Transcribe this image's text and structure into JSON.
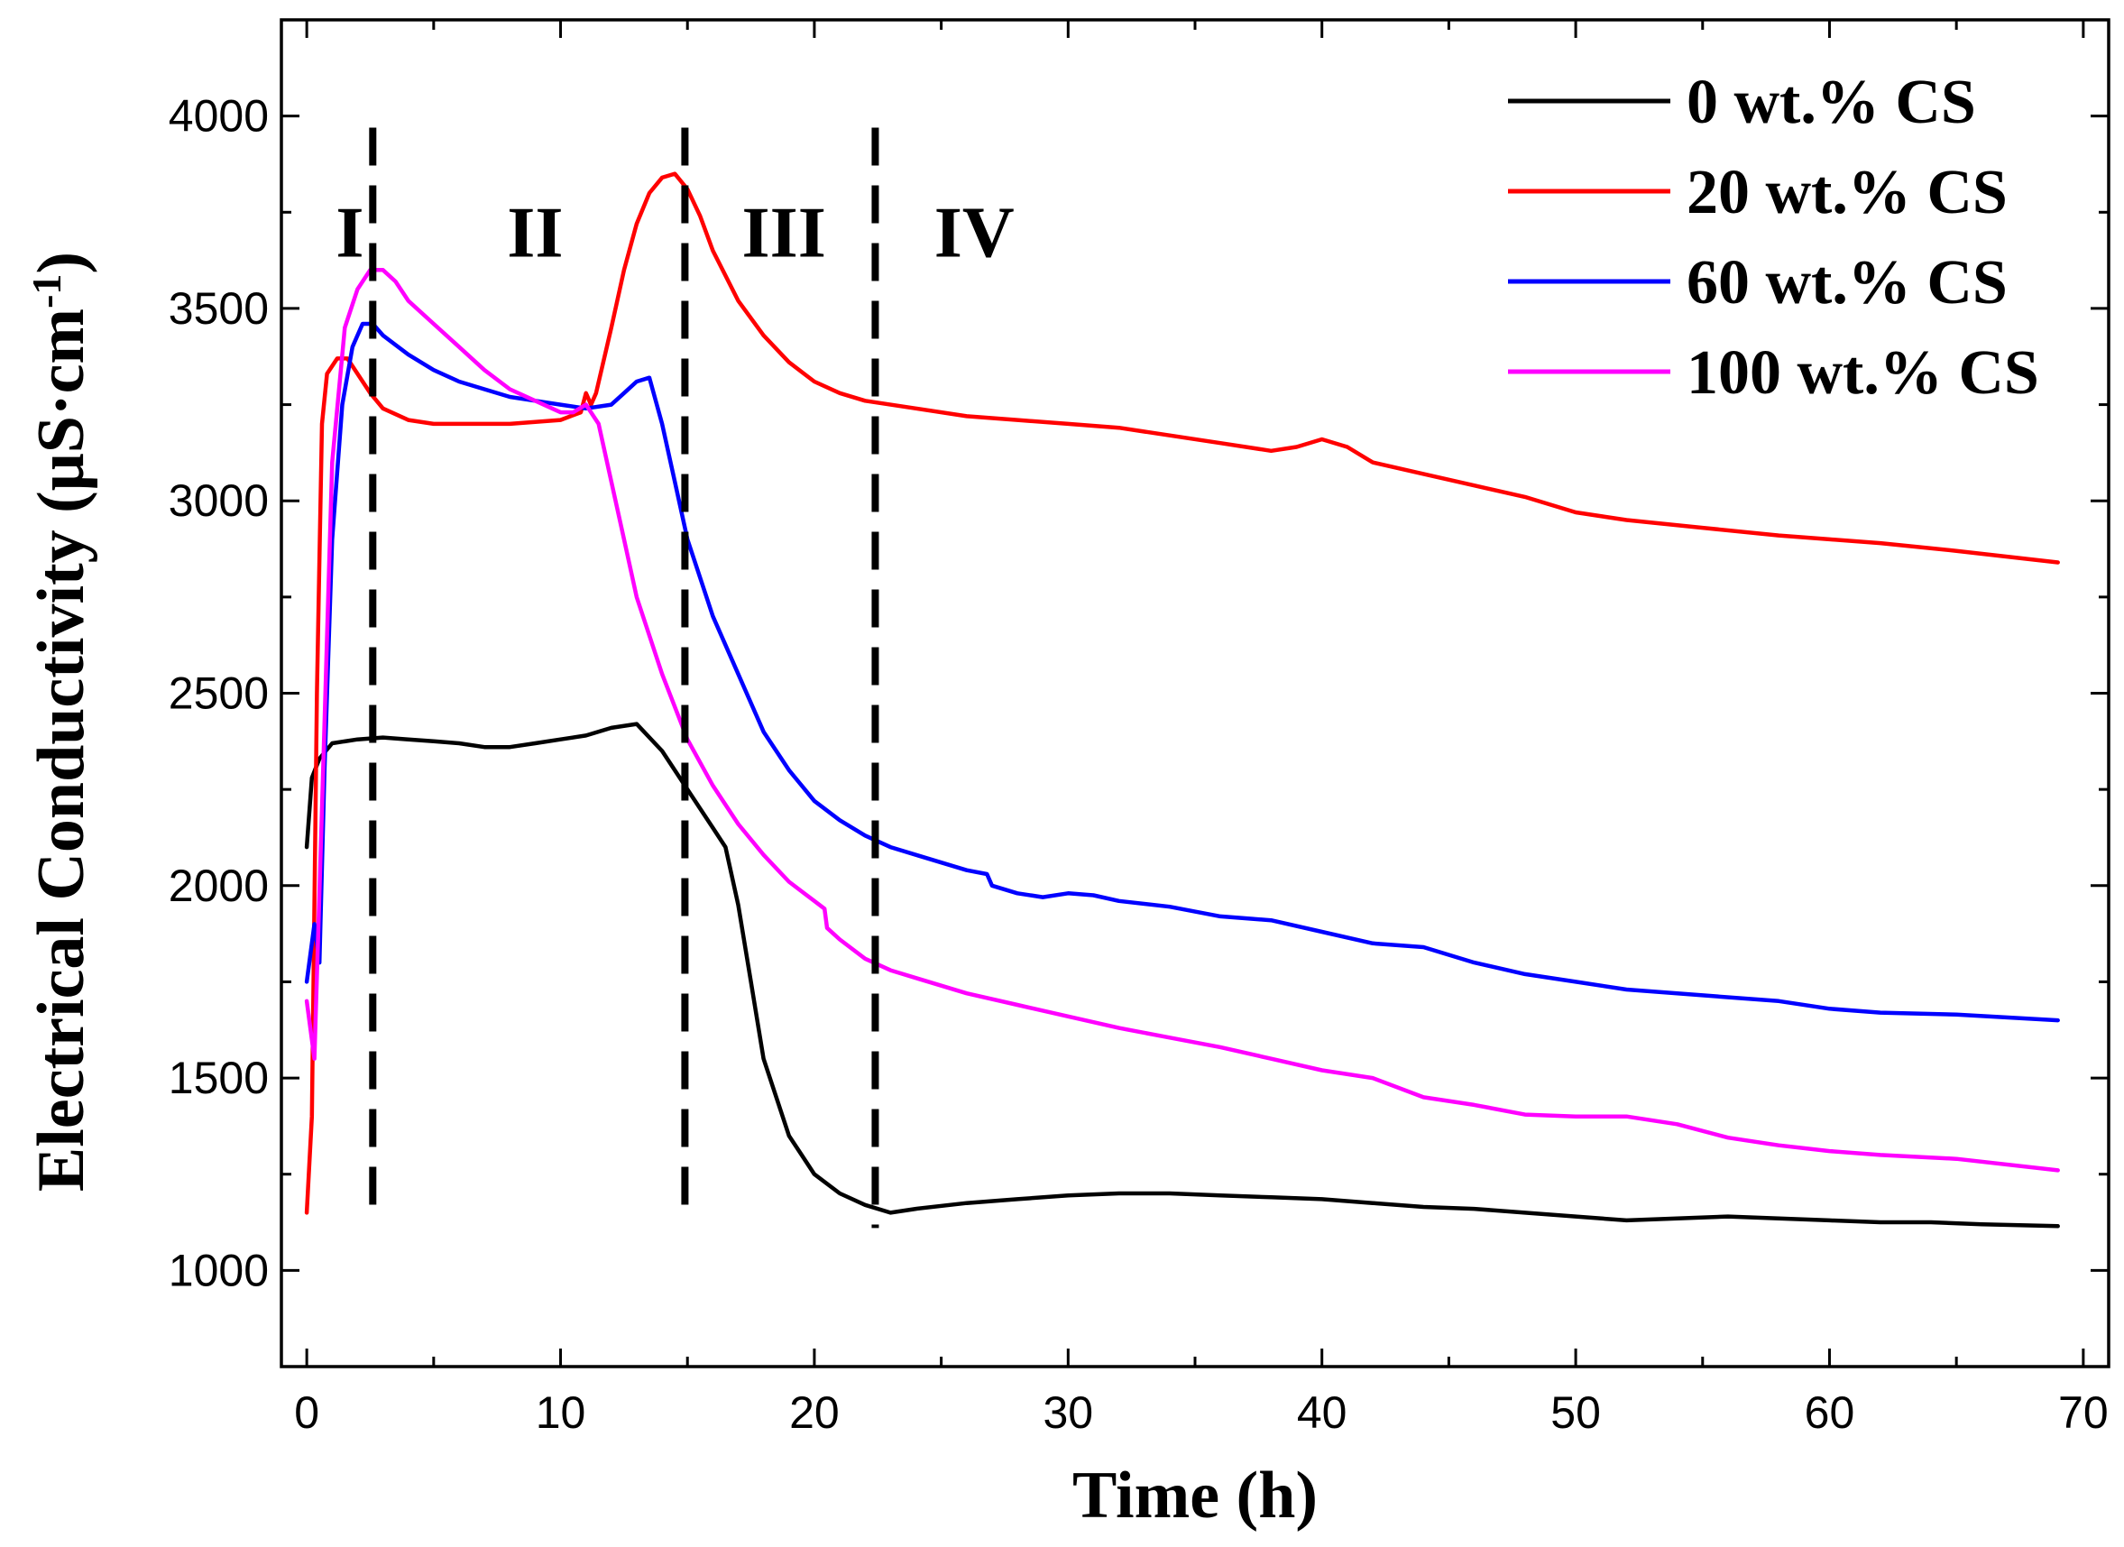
{
  "chart_data": {
    "type": "line",
    "title": "",
    "xlabel": "Time (h)",
    "ylabel": "Electrical Conductivity (μS·cm",
    "ylabel_superscript": "-1",
    "ylabel_close": ")",
    "xlim": [
      -1,
      71
    ],
    "ylim": [
      750,
      4250
    ],
    "x_ticks": [
      0,
      10,
      20,
      30,
      40,
      50,
      60,
      70
    ],
    "x_tick_labels": [
      "0",
      "10",
      "20",
      "30",
      "40",
      "50",
      "60",
      "70"
    ],
    "y_ticks": [
      1000,
      1500,
      2000,
      2500,
      3000,
      3500,
      4000
    ],
    "y_tick_labels": [
      "1000",
      "1500",
      "2000",
      "2500",
      "3000",
      "3500",
      "4000"
    ],
    "legend_position": "top-right",
    "regions": [
      {
        "label": "I",
        "x": 1.7
      },
      {
        "label": "II",
        "x": 9.0
      },
      {
        "label": "III",
        "x": 18.8
      },
      {
        "label": "IV",
        "x": 26.3
      }
    ],
    "region_label_y": 3700,
    "dividers": [
      {
        "x": 2.6,
        "y_top": 3970,
        "y_bottom": 1160
      },
      {
        "x": 14.9,
        "y_top": 3970,
        "y_bottom": 1160
      },
      {
        "x": 22.4,
        "y_top": 3970,
        "y_bottom": 1110
      }
    ],
    "series": [
      {
        "name": "0 wt.% CS",
        "color": "#000000",
        "x": [
          0,
          0.2,
          0.5,
          1,
          2,
          3,
          4,
          5,
          6,
          7,
          8,
          9,
          10,
          11,
          12,
          13,
          14,
          15,
          16,
          16.5,
          17,
          17.5,
          18,
          19,
          20,
          21,
          22,
          23,
          24,
          26,
          28,
          30,
          32,
          34,
          36,
          38,
          40,
          42,
          44,
          46,
          48,
          50,
          52,
          54,
          56,
          58,
          60,
          62,
          64,
          66,
          69
        ],
        "y": [
          2100,
          2280,
          2330,
          2370,
          2380,
          2385,
          2380,
          2375,
          2370,
          2360,
          2360,
          2370,
          2380,
          2390,
          2410,
          2420,
          2350,
          2250,
          2150,
          2100,
          1950,
          1750,
          1550,
          1350,
          1250,
          1200,
          1170,
          1150,
          1160,
          1175,
          1185,
          1195,
          1200,
          1200,
          1195,
          1190,
          1185,
          1175,
          1165,
          1160,
          1150,
          1140,
          1130,
          1135,
          1140,
          1135,
          1130,
          1125,
          1125,
          1120,
          1115
        ]
      },
      {
        "name": "20 wt.% CS",
        "color": "#ff0000",
        "x": [
          0,
          0.2,
          0.4,
          0.6,
          0.8,
          1.2,
          1.6,
          2,
          2.5,
          3,
          4,
          5,
          6,
          8,
          10,
          10.8,
          11,
          11.2,
          11.4,
          12,
          12.5,
          13,
          13.5,
          14,
          14.5,
          15,
          15.5,
          16,
          17,
          18,
          19,
          20,
          21,
          22,
          24,
          26,
          28,
          30,
          32,
          34,
          36,
          38,
          39,
          40,
          41,
          42,
          44,
          46,
          48,
          50,
          52,
          55,
          58,
          60,
          62,
          65,
          69
        ],
        "y": [
          1150,
          1400,
          2500,
          3200,
          3330,
          3370,
          3370,
          3330,
          3280,
          3240,
          3210,
          3200,
          3200,
          3200,
          3210,
          3230,
          3280,
          3250,
          3280,
          3450,
          3600,
          3720,
          3800,
          3840,
          3850,
          3810,
          3740,
          3650,
          3520,
          3430,
          3360,
          3310,
          3280,
          3260,
          3240,
          3220,
          3210,
          3200,
          3190,
          3170,
          3150,
          3130,
          3140,
          3160,
          3140,
          3100,
          3070,
          3040,
          3010,
          2970,
          2950,
          2930,
          2910,
          2900,
          2890,
          2870,
          2840
        ]
      },
      {
        "name": "60 wt.% CS",
        "color": "#0000ff",
        "x": [
          0,
          0.3,
          0.5,
          0.7,
          1.0,
          1.4,
          1.8,
          2.2,
          2.6,
          3,
          4,
          5,
          6,
          7,
          8,
          9,
          10,
          11,
          12,
          12.5,
          13,
          13.5,
          14,
          14.5,
          15,
          16,
          17,
          18,
          19,
          20,
          21,
          22,
          23,
          24,
          25,
          26,
          26.8,
          27,
          28,
          29,
          30,
          31,
          32,
          34,
          36,
          38,
          40,
          42,
          44,
          46,
          48,
          50,
          52,
          55,
          58,
          60,
          62,
          65,
          69
        ],
        "y": [
          1750,
          1900,
          1800,
          2300,
          2900,
          3250,
          3400,
          3460,
          3460,
          3430,
          3380,
          3340,
          3310,
          3290,
          3270,
          3260,
          3250,
          3240,
          3250,
          3280,
          3310,
          3320,
          3200,
          3050,
          2900,
          2700,
          2550,
          2400,
          2300,
          2220,
          2170,
          2130,
          2100,
          2080,
          2060,
          2040,
          2030,
          2000,
          1980,
          1970,
          1980,
          1975,
          1960,
          1945,
          1920,
          1910,
          1880,
          1850,
          1840,
          1800,
          1770,
          1750,
          1730,
          1715,
          1700,
          1680,
          1670,
          1665,
          1650
        ]
      },
      {
        "name": "100 wt.% CS",
        "color": "#ff00ff",
        "x": [
          0,
          0.3,
          0.6,
          1.0,
          1.5,
          2,
          2.5,
          3,
          3.5,
          4,
          5,
          6,
          7,
          8,
          9,
          10,
          10.5,
          11,
          11.5,
          12,
          12.5,
          13,
          14,
          15,
          16,
          17,
          18,
          19,
          20,
          20.4,
          20.5,
          21,
          22,
          23,
          24,
          26,
          28,
          30,
          32,
          34,
          36,
          38,
          40,
          42,
          44,
          46,
          48,
          50,
          52,
          54,
          56,
          58,
          60,
          62,
          65,
          69
        ],
        "y": [
          1700,
          1550,
          2200,
          3100,
          3450,
          3550,
          3600,
          3600,
          3570,
          3520,
          3460,
          3400,
          3340,
          3290,
          3260,
          3230,
          3230,
          3250,
          3200,
          3050,
          2900,
          2750,
          2550,
          2380,
          2260,
          2160,
          2080,
          2010,
          1960,
          1940,
          1890,
          1860,
          1810,
          1780,
          1760,
          1720,
          1690,
          1660,
          1630,
          1605,
          1580,
          1550,
          1520,
          1500,
          1450,
          1430,
          1405,
          1400,
          1400,
          1380,
          1345,
          1325,
          1310,
          1300,
          1290,
          1260
        ]
      }
    ]
  }
}
